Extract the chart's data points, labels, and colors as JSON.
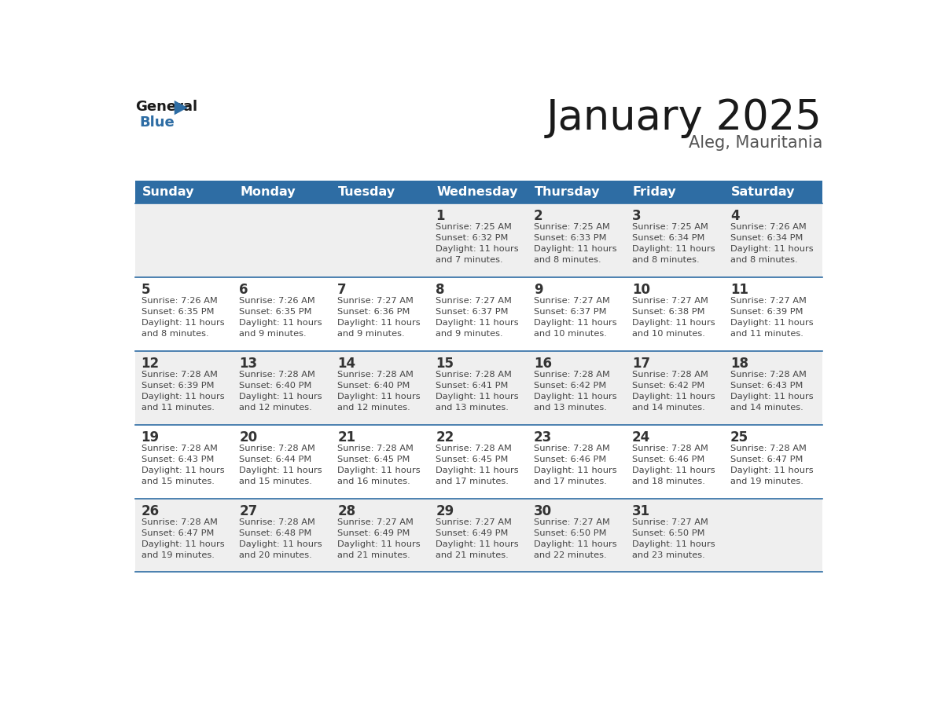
{
  "title": "January 2025",
  "subtitle": "Aleg, Mauritania",
  "days_of_week": [
    "Sunday",
    "Monday",
    "Tuesday",
    "Wednesday",
    "Thursday",
    "Friday",
    "Saturday"
  ],
  "header_bg": "#2E6DA4",
  "header_text": "#FFFFFF",
  "row_bg_odd": "#EFEFEF",
  "row_bg_even": "#FFFFFF",
  "cell_text": "#444444",
  "day_num_color": "#333333",
  "divider_color": "#2E6DA4",
  "logo_general_color": "#1a1a1a",
  "logo_blue_color": "#2E6DA4",
  "calendar": [
    [
      null,
      null,
      null,
      {
        "day": 1,
        "sunrise": "7:25 AM",
        "sunset": "6:32 PM",
        "daylight": "11 hours\nand 7 minutes."
      },
      {
        "day": 2,
        "sunrise": "7:25 AM",
        "sunset": "6:33 PM",
        "daylight": "11 hours\nand 8 minutes."
      },
      {
        "day": 3,
        "sunrise": "7:25 AM",
        "sunset": "6:34 PM",
        "daylight": "11 hours\nand 8 minutes."
      },
      {
        "day": 4,
        "sunrise": "7:26 AM",
        "sunset": "6:34 PM",
        "daylight": "11 hours\nand 8 minutes."
      }
    ],
    [
      {
        "day": 5,
        "sunrise": "7:26 AM",
        "sunset": "6:35 PM",
        "daylight": "11 hours\nand 8 minutes."
      },
      {
        "day": 6,
        "sunrise": "7:26 AM",
        "sunset": "6:35 PM",
        "daylight": "11 hours\nand 9 minutes."
      },
      {
        "day": 7,
        "sunrise": "7:27 AM",
        "sunset": "6:36 PM",
        "daylight": "11 hours\nand 9 minutes."
      },
      {
        "day": 8,
        "sunrise": "7:27 AM",
        "sunset": "6:37 PM",
        "daylight": "11 hours\nand 9 minutes."
      },
      {
        "day": 9,
        "sunrise": "7:27 AM",
        "sunset": "6:37 PM",
        "daylight": "11 hours\nand 10 minutes."
      },
      {
        "day": 10,
        "sunrise": "7:27 AM",
        "sunset": "6:38 PM",
        "daylight": "11 hours\nand 10 minutes."
      },
      {
        "day": 11,
        "sunrise": "7:27 AM",
        "sunset": "6:39 PM",
        "daylight": "11 hours\nand 11 minutes."
      }
    ],
    [
      {
        "day": 12,
        "sunrise": "7:28 AM",
        "sunset": "6:39 PM",
        "daylight": "11 hours\nand 11 minutes."
      },
      {
        "day": 13,
        "sunrise": "7:28 AM",
        "sunset": "6:40 PM",
        "daylight": "11 hours\nand 12 minutes."
      },
      {
        "day": 14,
        "sunrise": "7:28 AM",
        "sunset": "6:40 PM",
        "daylight": "11 hours\nand 12 minutes."
      },
      {
        "day": 15,
        "sunrise": "7:28 AM",
        "sunset": "6:41 PM",
        "daylight": "11 hours\nand 13 minutes."
      },
      {
        "day": 16,
        "sunrise": "7:28 AM",
        "sunset": "6:42 PM",
        "daylight": "11 hours\nand 13 minutes."
      },
      {
        "day": 17,
        "sunrise": "7:28 AM",
        "sunset": "6:42 PM",
        "daylight": "11 hours\nand 14 minutes."
      },
      {
        "day": 18,
        "sunrise": "7:28 AM",
        "sunset": "6:43 PM",
        "daylight": "11 hours\nand 14 minutes."
      }
    ],
    [
      {
        "day": 19,
        "sunrise": "7:28 AM",
        "sunset": "6:43 PM",
        "daylight": "11 hours\nand 15 minutes."
      },
      {
        "day": 20,
        "sunrise": "7:28 AM",
        "sunset": "6:44 PM",
        "daylight": "11 hours\nand 15 minutes."
      },
      {
        "day": 21,
        "sunrise": "7:28 AM",
        "sunset": "6:45 PM",
        "daylight": "11 hours\nand 16 minutes."
      },
      {
        "day": 22,
        "sunrise": "7:28 AM",
        "sunset": "6:45 PM",
        "daylight": "11 hours\nand 17 minutes."
      },
      {
        "day": 23,
        "sunrise": "7:28 AM",
        "sunset": "6:46 PM",
        "daylight": "11 hours\nand 17 minutes."
      },
      {
        "day": 24,
        "sunrise": "7:28 AM",
        "sunset": "6:46 PM",
        "daylight": "11 hours\nand 18 minutes."
      },
      {
        "day": 25,
        "sunrise": "7:28 AM",
        "sunset": "6:47 PM",
        "daylight": "11 hours\nand 19 minutes."
      }
    ],
    [
      {
        "day": 26,
        "sunrise": "7:28 AM",
        "sunset": "6:47 PM",
        "daylight": "11 hours\nand 19 minutes."
      },
      {
        "day": 27,
        "sunrise": "7:28 AM",
        "sunset": "6:48 PM",
        "daylight": "11 hours\nand 20 minutes."
      },
      {
        "day": 28,
        "sunrise": "7:27 AM",
        "sunset": "6:49 PM",
        "daylight": "11 hours\nand 21 minutes."
      },
      {
        "day": 29,
        "sunrise": "7:27 AM",
        "sunset": "6:49 PM",
        "daylight": "11 hours\nand 21 minutes."
      },
      {
        "day": 30,
        "sunrise": "7:27 AM",
        "sunset": "6:50 PM",
        "daylight": "11 hours\nand 22 minutes."
      },
      {
        "day": 31,
        "sunrise": "7:27 AM",
        "sunset": "6:50 PM",
        "daylight": "11 hours\nand 23 minutes."
      },
      null
    ]
  ]
}
